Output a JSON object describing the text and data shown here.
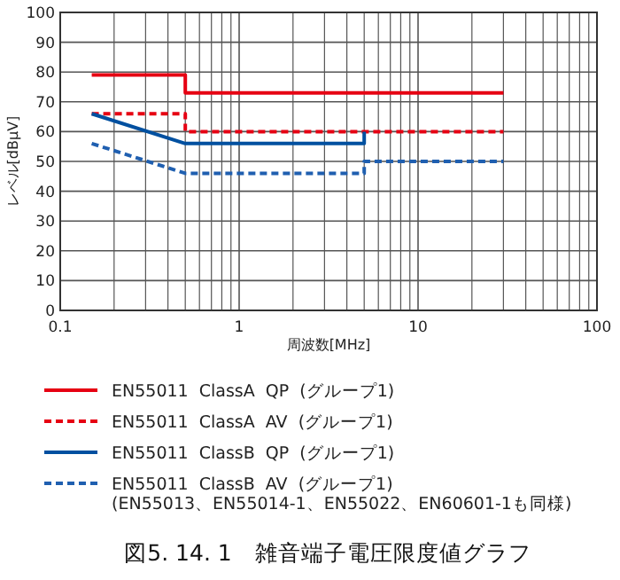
{
  "chart_data": {
    "type": "line",
    "title": "図5. 14. 1　雑音端子電圧限度値グラフ",
    "xlabel": "周波数[MHz]",
    "ylabel": "レベル[dBμV]",
    "log": "x",
    "xlim": [
      0.1,
      100
    ],
    "xticks": [
      0.1,
      1,
      10,
      100
    ],
    "ylim": [
      0,
      100
    ],
    "yticks": [
      0,
      10,
      20,
      30,
      40,
      50,
      60,
      70,
      80,
      90,
      100
    ],
    "grid": true,
    "legend": "bottom",
    "marker": "none",
    "series": [
      {
        "name": "EN55011  ClassA  QP  (グループ1)",
        "color": "#e60012",
        "line_style": "solid",
        "x": [
          0.15,
          0.5,
          0.5,
          30
        ],
        "values": [
          79,
          79,
          73,
          73
        ]
      },
      {
        "name": "EN55011  ClassA  AV  (グループ1)",
        "color": "#e60012",
        "line_style": "dashed",
        "x": [
          0.15,
          0.5,
          0.5,
          30
        ],
        "values": [
          66,
          66,
          60,
          60
        ]
      },
      {
        "name": "EN55011  ClassB  QP  (グループ1)",
        "color": "#0050a0",
        "line_style": "solid",
        "x": [
          0.15,
          0.5,
          5,
          5
        ],
        "values": [
          66,
          56,
          56,
          60
        ]
      },
      {
        "name": "EN55011  ClassB  AV  (グループ1)",
        "color": "#1f5fb0",
        "line_style": "dashed",
        "x": [
          0.15,
          0.5,
          5,
          5,
          30
        ],
        "values": [
          56,
          46,
          46,
          50,
          50
        ]
      }
    ],
    "annotations": [
      "(EN55013、EN55014-1、EN55022、EN60601-1も同様)"
    ]
  }
}
